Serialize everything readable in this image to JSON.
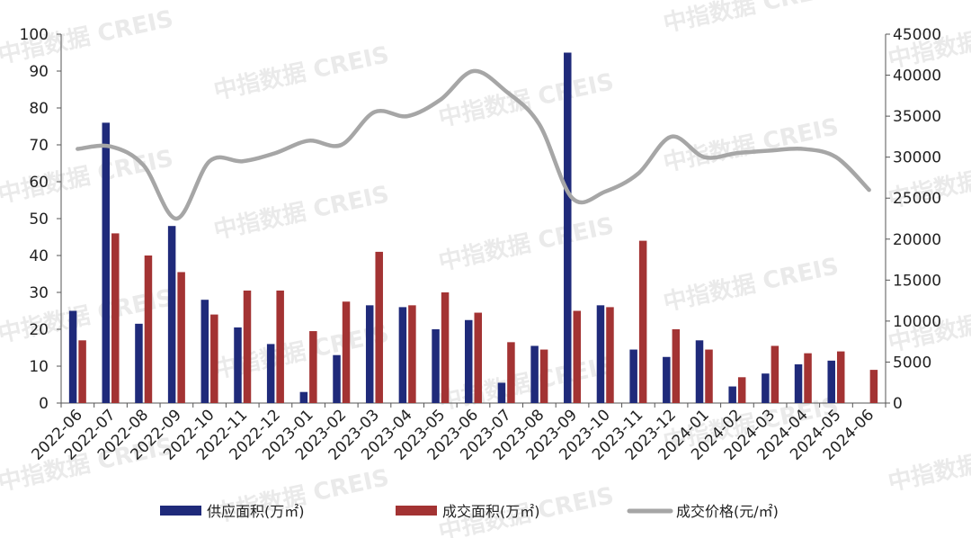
{
  "watermark": "中指数据 CREIS",
  "chart_data": {
    "type": "bar",
    "categories": [
      "2022-06",
      "2022-07",
      "2022-08",
      "2022-09",
      "2022-10",
      "2022-11",
      "2022-12",
      "2023-01",
      "2023-02",
      "2023-03",
      "2023-04",
      "2023-05",
      "2023-06",
      "2023-07",
      "2023-08",
      "2023-09",
      "2023-10",
      "2023-11",
      "2023-12",
      "2024-01",
      "2024-02",
      "2024-03",
      "2024-04",
      "2024-05",
      "2024-06"
    ],
    "series": [
      {
        "name": "供应面积(万㎡)",
        "type": "bar",
        "axis": "left",
        "color": "#1f2a7a",
        "values": [
          25,
          76,
          21.5,
          48,
          28,
          20.5,
          16,
          3,
          13,
          26.5,
          26,
          20,
          22.5,
          5.5,
          15.5,
          95,
          26.5,
          14.5,
          12.5,
          17,
          4.5,
          8,
          10.5,
          11.5,
          null
        ]
      },
      {
        "name": "成交面积(万㎡)",
        "type": "bar",
        "axis": "left",
        "color": "#a33333",
        "values": [
          17,
          46,
          40,
          35.5,
          24,
          30.5,
          30.5,
          19.5,
          27.5,
          41,
          26.5,
          30,
          24.5,
          16.5,
          14.5,
          25,
          26,
          44,
          20,
          14.5,
          7,
          15.5,
          13.5,
          14,
          9
        ]
      },
      {
        "name": "成交价格(元/㎡)",
        "type": "line",
        "axis": "right",
        "color": "#a6a6a6",
        "values": [
          31000,
          31300,
          29000,
          22500,
          29500,
          29500,
          30500,
          32000,
          31500,
          35500,
          35000,
          37000,
          40500,
          38000,
          34000,
          25000,
          25800,
          28000,
          32500,
          30000,
          30500,
          30800,
          31000,
          30000,
          26000
        ]
      }
    ],
    "y_left": {
      "min": 0,
      "max": 100,
      "ticks": [
        0,
        10,
        20,
        30,
        40,
        50,
        60,
        70,
        80,
        90,
        100
      ]
    },
    "y_right": {
      "min": 0,
      "max": 45000,
      "ticks": [
        0,
        5000,
        10000,
        15000,
        20000,
        25000,
        30000,
        35000,
        40000,
        45000
      ]
    },
    "legend_position": "bottom",
    "grid": false
  }
}
